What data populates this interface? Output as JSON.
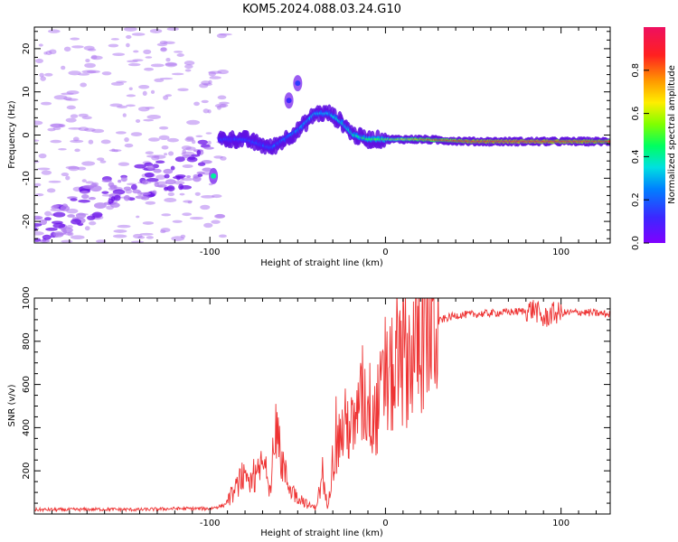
{
  "title": "KOM5.2024.088.03.24.G10",
  "chart_data": [
    {
      "type": "heatmap",
      "xlabel": "Height of straight line (km)",
      "ylabel": "Frequency (Hz)",
      "xlim": [
        -200,
        128
      ],
      "ylim": [
        -25,
        25
      ],
      "xticks": [
        -100,
        0,
        100
      ],
      "yticks": [
        -20,
        -10,
        0,
        10,
        20
      ],
      "colorbar": {
        "label": "Normalized spectral amplitude",
        "range": [
          0,
          1
        ],
        "ticks": [
          "0.0",
          "0.2",
          "0.4",
          "0.6",
          "0.8"
        ],
        "colormap": "rainbow (purple-blue-cyan-green-yellow-orange-red-pink)"
      },
      "ridge": {
        "x": [
          -200,
          -150,
          -110,
          -95,
          -80,
          -65,
          -50,
          -40,
          -32,
          -25,
          -18,
          -10,
          0,
          20,
          50,
          80,
          110,
          128
        ],
        "frequency": [
          -22,
          -12,
          -8,
          -1,
          -1,
          -3,
          1,
          5,
          5,
          3,
          0,
          -1,
          -1,
          -1,
          -1.5,
          -1.5,
          -1.5,
          -1.5
        ],
        "amplitude": [
          0.1,
          0.1,
          0.1,
          0.15,
          0.15,
          0.2,
          0.25,
          0.3,
          0.3,
          0.35,
          0.4,
          0.45,
          0.5,
          0.75,
          0.9,
          0.95,
          0.9,
          0.85
        ]
      },
      "extra_blobs": [
        {
          "x": -50,
          "frequency": 12,
          "amplitude": 0.15
        },
        {
          "x": -55,
          "frequency": 8,
          "amplitude": 0.12
        },
        {
          "x": -98,
          "frequency": -9.5,
          "amplitude": 0.4
        }
      ]
    },
    {
      "type": "line",
      "xlabel": "Height of straight line (km)",
      "ylabel": "SNR (v/v)",
      "xlim": [
        -200,
        128
      ],
      "ylim": [
        0,
        1000
      ],
      "xticks": [
        -100,
        0,
        100
      ],
      "yticks": [
        200,
        400,
        600,
        800,
        1000
      ],
      "color": "#ee3333",
      "series": [
        {
          "x": [
            -200,
            -180,
            -160,
            -140,
            -120,
            -100,
            -92,
            -86,
            -82,
            -78,
            -74,
            -70,
            -66,
            -62,
            -59,
            -56,
            -52,
            -48,
            -44,
            -40,
            -36,
            -33,
            -30,
            -26,
            -22,
            -18,
            -14,
            -10,
            -6,
            -2,
            2,
            6,
            10,
            14,
            18,
            24,
            32,
            40,
            50,
            60,
            70,
            80,
            85,
            90,
            95,
            100,
            110,
            120,
            128
          ],
          "y": [
            20,
            20,
            22,
            20,
            25,
            25,
            40,
            100,
            180,
            120,
            160,
            230,
            140,
            330,
            250,
            150,
            90,
            70,
            40,
            30,
            150,
            40,
            250,
            360,
            420,
            380,
            500,
            520,
            440,
            560,
            620,
            640,
            700,
            740,
            780,
            850,
            900,
            920,
            925,
            930,
            935,
            940,
            950,
            900,
            930,
            930,
            935,
            930,
            925
          ]
        }
      ]
    }
  ]
}
